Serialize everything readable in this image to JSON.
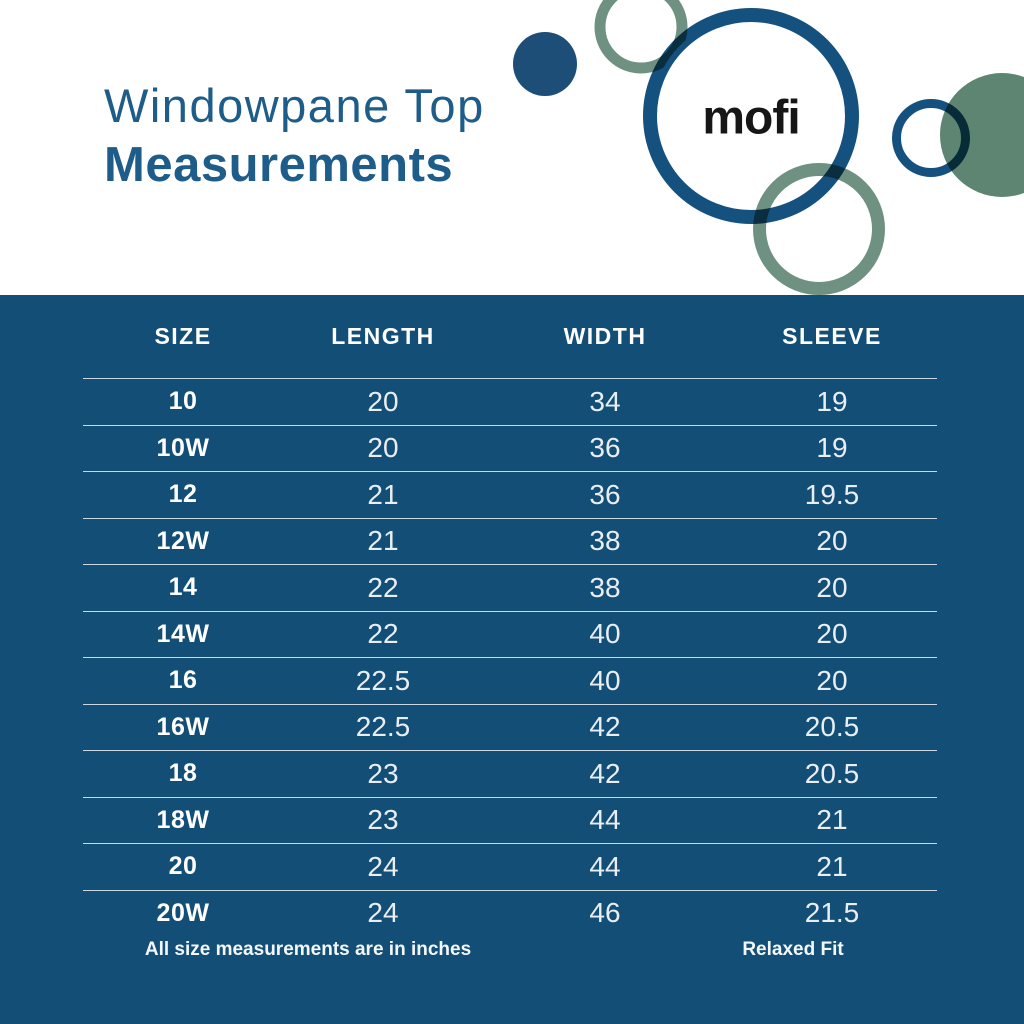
{
  "hero": {
    "title_line1": "Windowpane Top",
    "title_line2": "Measurements",
    "logo_text": "mofi"
  },
  "chart_data": {
    "type": "table",
    "title": "Windowpane Top Measurements",
    "columns": [
      "SIZE",
      "LENGTH",
      "WIDTH",
      "SLEEVE"
    ],
    "rows": [
      [
        "10",
        "20",
        "34",
        "19"
      ],
      [
        "10W",
        "20",
        "36",
        "19"
      ],
      [
        "12",
        "21",
        "36",
        "19.5"
      ],
      [
        "12W",
        "21",
        "38",
        "20"
      ],
      [
        "14",
        "22",
        "38",
        "20"
      ],
      [
        "14W",
        "22",
        "40",
        "20"
      ],
      [
        "16",
        "22.5",
        "40",
        "20"
      ],
      [
        "16W",
        "22.5",
        "42",
        "20.5"
      ],
      [
        "18",
        "23",
        "42",
        "20.5"
      ],
      [
        "18W",
        "23",
        "44",
        "21"
      ],
      [
        "20",
        "24",
        "44",
        "21"
      ],
      [
        "20W",
        "24",
        "46",
        "21.5"
      ]
    ],
    "notes": [
      "All size measurements are in inches",
      "Relaxed Fit"
    ],
    "units": "inches"
  },
  "colors": {
    "table_background": "#134e77",
    "title_blue": "#1e5c89",
    "brand_blue_ring": "#15517e",
    "solid_blue_circle": "#1d4e78",
    "sage_green_ring": "#6f9181",
    "sage_green_solid": "#5e8571",
    "logo_text_color": "#161616",
    "table_text": "#ffffff"
  }
}
